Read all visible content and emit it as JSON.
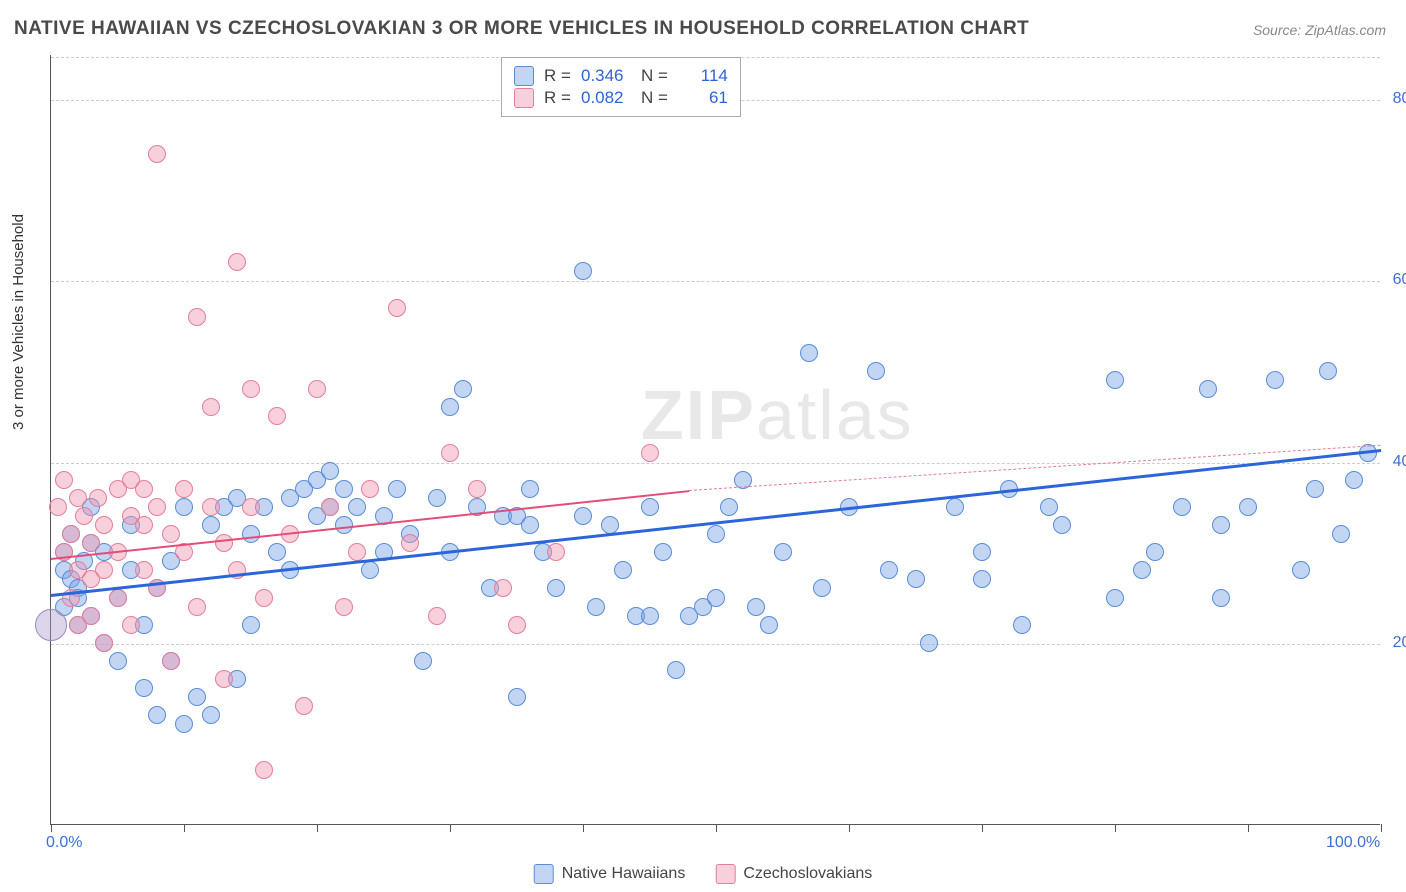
{
  "title": "NATIVE HAWAIIAN VS CZECHOSLOVAKIAN 3 OR MORE VEHICLES IN HOUSEHOLD CORRELATION CHART",
  "source": "Source: ZipAtlas.com",
  "ylabel": "3 or more Vehicles in Household",
  "watermark": "ZIPatlas",
  "chart": {
    "type": "scatter",
    "xlim": [
      0,
      100
    ],
    "ylim": [
      0,
      85
    ],
    "yticks": [
      20,
      40,
      60,
      80
    ],
    "ytick_labels": [
      "20.0%",
      "40.0%",
      "60.0%",
      "80.0%"
    ],
    "xticks": [
      0,
      10,
      20,
      30,
      40,
      50,
      60,
      70,
      80,
      90,
      100
    ],
    "xtick_labels": {
      "0": "0.0%",
      "100": "100.0%"
    },
    "background": "#ffffff",
    "grid_color": "#cccccc",
    "axis_color": "#555555",
    "tick_label_color": "#3b6fd6",
    "tick_label_fontsize": 16
  },
  "series": [
    {
      "name": "Native Hawaiians",
      "fill": "rgba(120,165,230,0.45)",
      "stroke": "#5a8cd8",
      "marker_radius": 9,
      "R": "0.346",
      "N": "114",
      "trend": {
        "x1": 0,
        "y1": 25.5,
        "x2": 100,
        "y2": 41.5,
        "color": "#2b65d9",
        "width": 3,
        "dash": "none"
      },
      "points": [
        [
          1,
          28
        ],
        [
          1,
          30
        ],
        [
          1,
          24
        ],
        [
          1.5,
          27
        ],
        [
          1.5,
          32
        ],
        [
          2,
          26
        ],
        [
          2,
          22
        ],
        [
          2,
          25
        ],
        [
          2.5,
          29
        ],
        [
          3,
          31
        ],
        [
          3,
          23
        ],
        [
          3,
          35
        ],
        [
          4,
          30
        ],
        [
          4,
          20
        ],
        [
          5,
          25
        ],
        [
          5,
          18
        ],
        [
          6,
          28
        ],
        [
          6,
          33
        ],
        [
          7,
          15
        ],
        [
          7,
          22
        ],
        [
          8,
          26
        ],
        [
          8,
          12
        ],
        [
          9,
          18
        ],
        [
          9,
          29
        ],
        [
          10,
          35
        ],
        [
          10,
          11
        ],
        [
          11,
          14
        ],
        [
          12,
          12
        ],
        [
          12,
          33
        ],
        [
          13,
          35
        ],
        [
          14,
          36
        ],
        [
          14,
          16
        ],
        [
          15,
          22
        ],
        [
          15,
          32
        ],
        [
          16,
          35
        ],
        [
          17,
          30
        ],
        [
          18,
          36
        ],
        [
          18,
          28
        ],
        [
          19,
          37
        ],
        [
          20,
          34
        ],
        [
          20,
          38
        ],
        [
          21,
          35
        ],
        [
          21,
          39
        ],
        [
          22,
          37
        ],
        [
          22,
          33
        ],
        [
          23,
          35
        ],
        [
          24,
          28
        ],
        [
          25,
          34
        ],
        [
          25,
          30
        ],
        [
          26,
          37
        ],
        [
          27,
          32
        ],
        [
          28,
          18
        ],
        [
          29,
          36
        ],
        [
          30,
          46
        ],
        [
          30,
          30
        ],
        [
          31,
          48
        ],
        [
          32,
          35
        ],
        [
          33,
          26
        ],
        [
          34,
          34
        ],
        [
          35,
          14
        ],
        [
          35,
          34
        ],
        [
          36,
          33
        ],
        [
          36,
          37
        ],
        [
          37,
          30
        ],
        [
          38,
          26
        ],
        [
          40,
          61
        ],
        [
          40,
          34
        ],
        [
          41,
          24
        ],
        [
          42,
          33
        ],
        [
          43,
          28
        ],
        [
          44,
          23
        ],
        [
          45,
          35
        ],
        [
          46,
          30
        ],
        [
          47,
          17
        ],
        [
          48,
          23
        ],
        [
          49,
          24
        ],
        [
          50,
          32
        ],
        [
          50,
          25
        ],
        [
          51,
          35
        ],
        [
          52,
          38
        ],
        [
          53,
          24
        ],
        [
          54,
          22
        ],
        [
          55,
          30
        ],
        [
          57,
          52
        ],
        [
          58,
          26
        ],
        [
          60,
          35
        ],
        [
          62,
          50
        ],
        [
          63,
          28
        ],
        [
          65,
          27
        ],
        [
          66,
          20
        ],
        [
          68,
          35
        ],
        [
          70,
          30
        ],
        [
          72,
          37
        ],
        [
          73,
          22
        ],
        [
          75,
          35
        ],
        [
          76,
          33
        ],
        [
          80,
          49
        ],
        [
          82,
          28
        ],
        [
          83,
          30
        ],
        [
          85,
          35
        ],
        [
          87,
          48
        ],
        [
          88,
          33
        ],
        [
          90,
          35
        ],
        [
          92,
          49
        ],
        [
          94,
          28
        ],
        [
          95,
          37
        ],
        [
          96,
          50
        ],
        [
          97,
          32
        ],
        [
          98,
          38
        ],
        [
          99,
          41
        ],
        [
          80,
          25
        ],
        [
          88,
          25
        ],
        [
          45,
          23
        ],
        [
          70,
          27
        ]
      ]
    },
    {
      "name": "Czechoslovakians",
      "fill": "rgba(240,150,175,0.45)",
      "stroke": "#e57d9b",
      "marker_radius": 9,
      "R": "0.082",
      "N": "61",
      "trend_solid": {
        "x1": 0,
        "y1": 29.5,
        "x2": 48,
        "y2": 37,
        "color": "#e34d77",
        "width": 2.5,
        "dash": "none"
      },
      "trend_dash": {
        "x1": 48,
        "y1": 37,
        "x2": 100,
        "y2": 42,
        "color": "#e57d9b",
        "width": 1,
        "dash": "5,4"
      },
      "points": [
        [
          0.5,
          35
        ],
        [
          1,
          30
        ],
        [
          1,
          38
        ],
        [
          1.5,
          25
        ],
        [
          1.5,
          32
        ],
        [
          2,
          28
        ],
        [
          2,
          36
        ],
        [
          2,
          22
        ],
        [
          2.5,
          34
        ],
        [
          3,
          27
        ],
        [
          3,
          31
        ],
        [
          3,
          23
        ],
        [
          3.5,
          36
        ],
        [
          4,
          28
        ],
        [
          4,
          33
        ],
        [
          4,
          20
        ],
        [
          5,
          37
        ],
        [
          5,
          30
        ],
        [
          5,
          25
        ],
        [
          6,
          34
        ],
        [
          6,
          38
        ],
        [
          6,
          22
        ],
        [
          7,
          33
        ],
        [
          7,
          37
        ],
        [
          7,
          28
        ],
        [
          8,
          35
        ],
        [
          8,
          74
        ],
        [
          8,
          26
        ],
        [
          9,
          32
        ],
        [
          9,
          18
        ],
        [
          10,
          37
        ],
        [
          10,
          30
        ],
        [
          11,
          56
        ],
        [
          11,
          24
        ],
        [
          12,
          46
        ],
        [
          12,
          35
        ],
        [
          13,
          31
        ],
        [
          13,
          16
        ],
        [
          14,
          62
        ],
        [
          14,
          28
        ],
        [
          15,
          48
        ],
        [
          15,
          35
        ],
        [
          16,
          25
        ],
        [
          16,
          6
        ],
        [
          17,
          45
        ],
        [
          18,
          32
        ],
        [
          19,
          13
        ],
        [
          20,
          48
        ],
        [
          21,
          35
        ],
        [
          22,
          24
        ],
        [
          23,
          30
        ],
        [
          24,
          37
        ],
        [
          26,
          57
        ],
        [
          27,
          31
        ],
        [
          29,
          23
        ],
        [
          30,
          41
        ],
        [
          32,
          37
        ],
        [
          34,
          26
        ],
        [
          35,
          22
        ],
        [
          38,
          30
        ],
        [
          45,
          41
        ]
      ]
    }
  ],
  "legend": {
    "items": [
      "Native Hawaiians",
      "Czechoslovakians"
    ]
  },
  "rn_labels": {
    "R": "R =",
    "N": "N ="
  }
}
